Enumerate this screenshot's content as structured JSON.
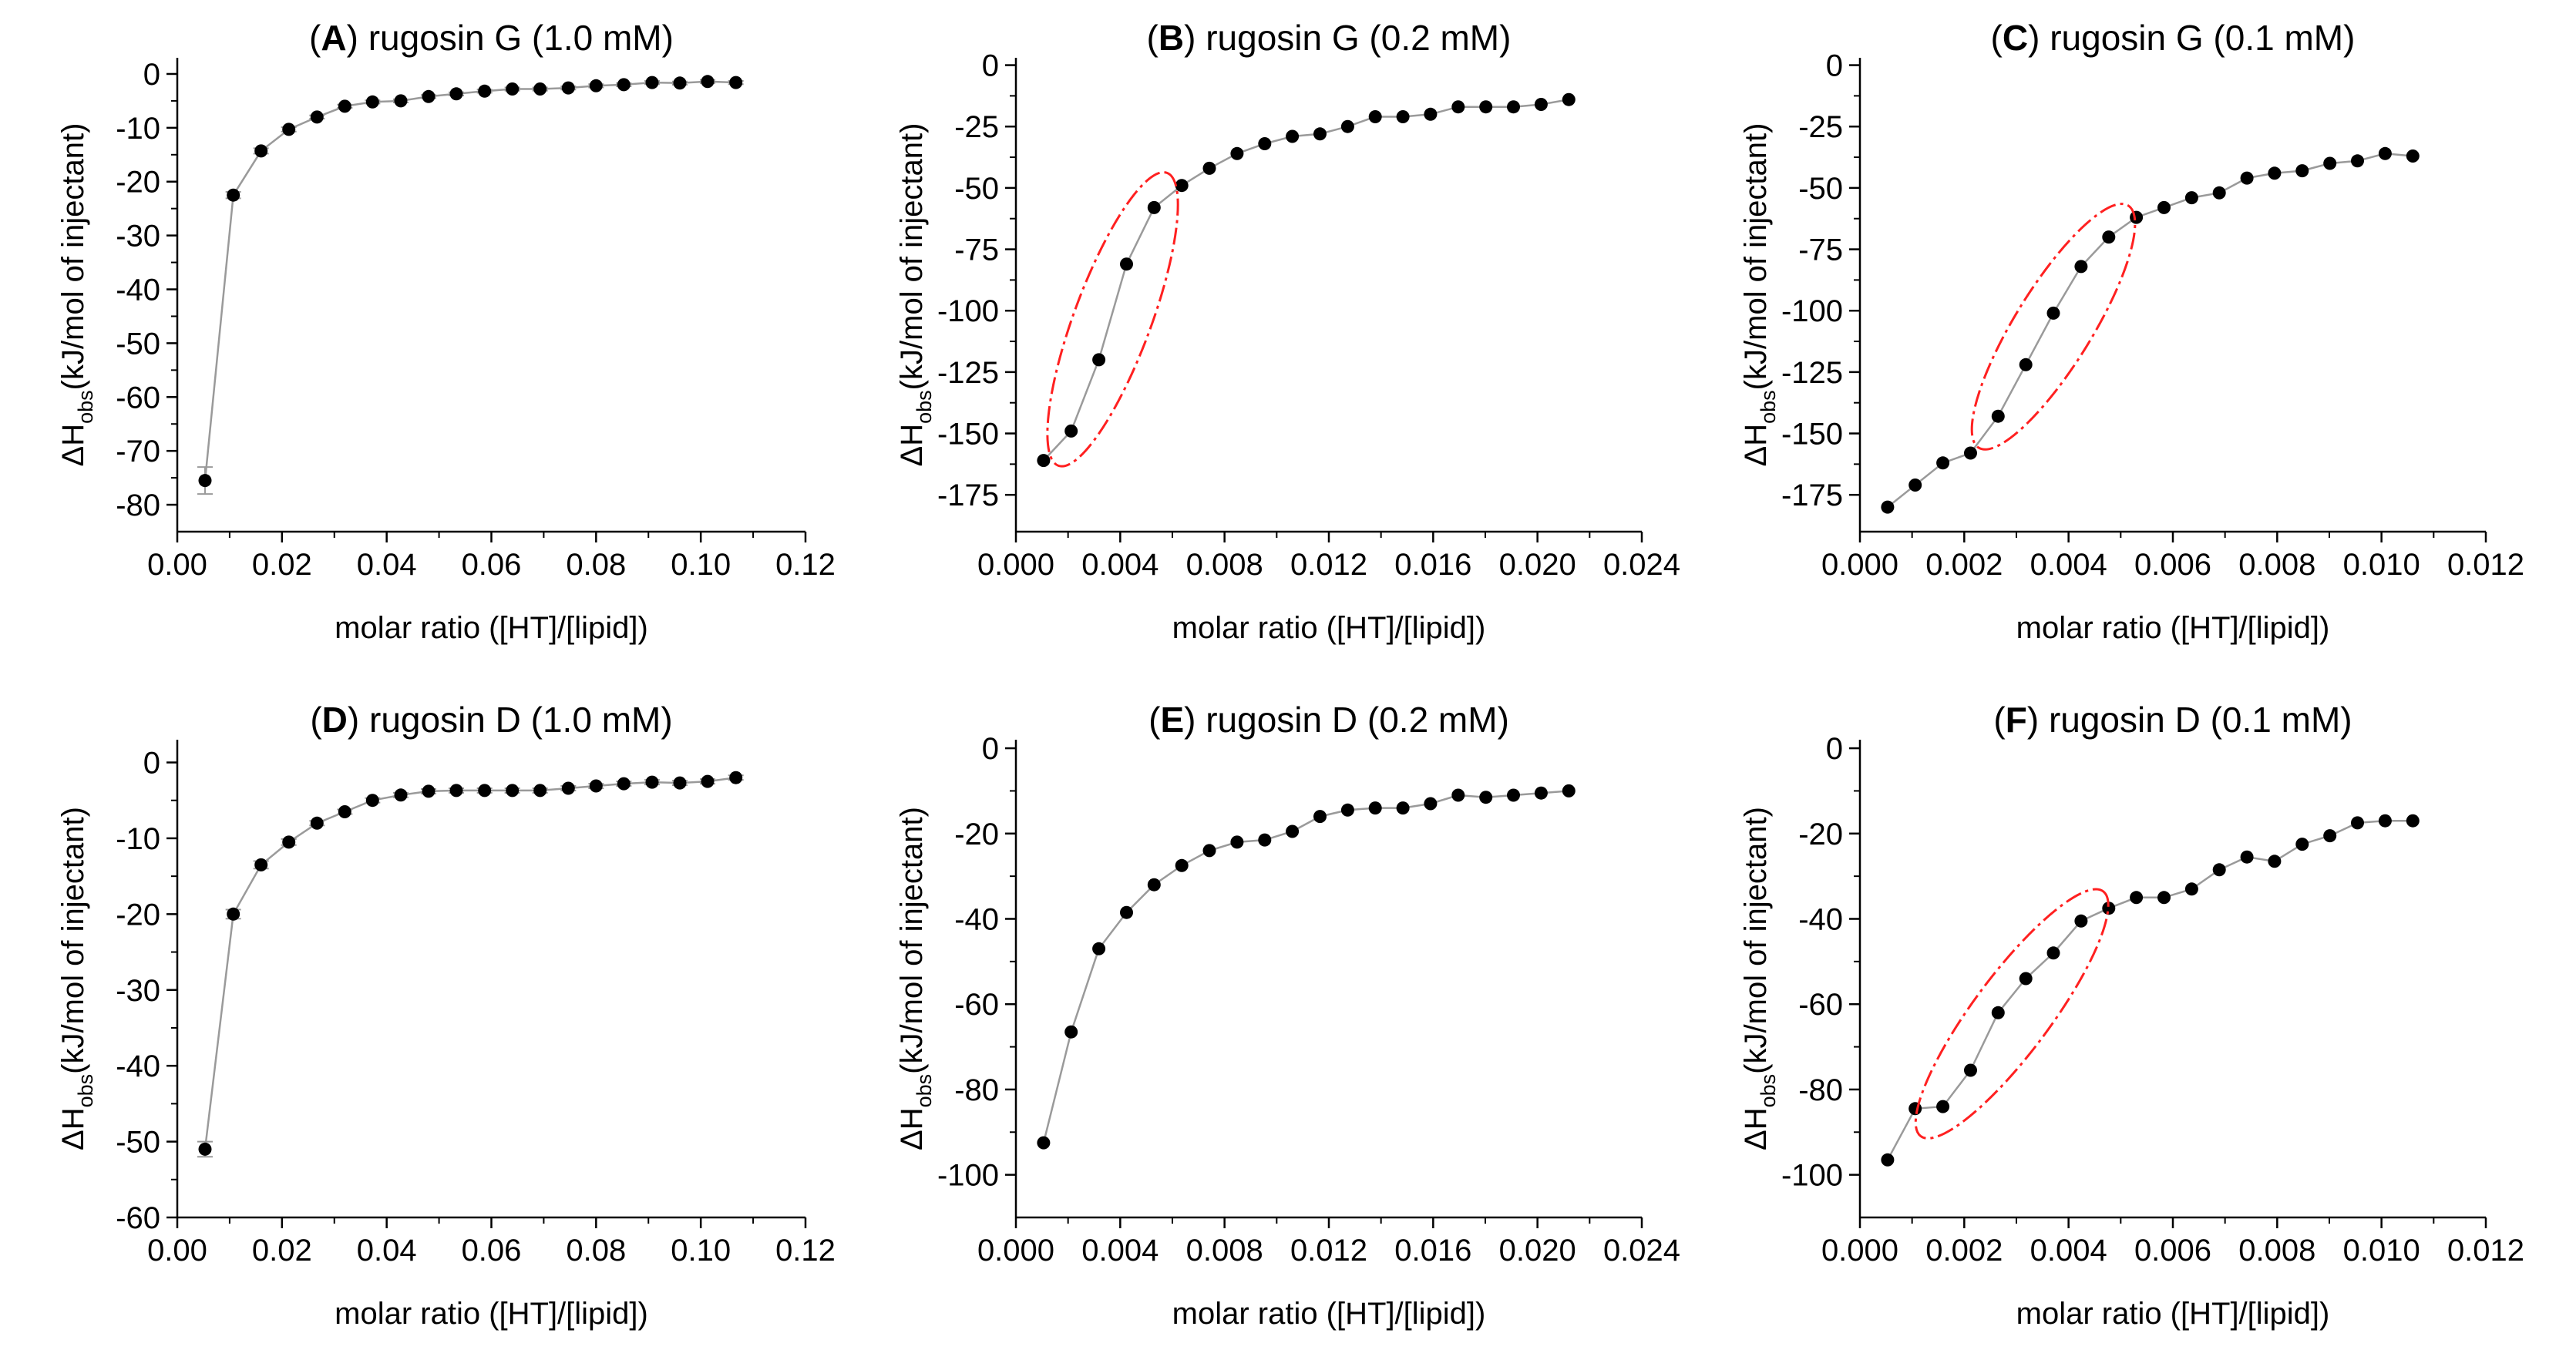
{
  "chart_data": [
    {
      "type": "scatter",
      "panel_letter": "A",
      "title": "rugosin G (1.0 mM)",
      "xlabel": "molar ratio ([HT]/[lipid])",
      "ylabel_parts": [
        "ΔH",
        "obs",
        "(kJ/mol of injectant)"
      ],
      "xlim": [
        0,
        0.12
      ],
      "xticks": [
        0,
        0.02,
        0.04,
        0.06,
        0.08,
        0.1,
        0.12
      ],
      "xtick_labels": [
        "0.00",
        "0.02",
        "0.04",
        "0.06",
        "0.08",
        "0.10",
        "0.12"
      ],
      "ylim": [
        -85,
        3
      ],
      "yticks": [
        0,
        -10,
        -20,
        -30,
        -40,
        -50,
        -60,
        -70,
        -80
      ],
      "ytick_labels": [
        "0",
        "-10",
        "-20",
        "-30",
        "-40",
        "-50",
        "-60",
        "-70",
        "-80"
      ],
      "x": [
        0.0053,
        0.0107,
        0.016,
        0.0213,
        0.0267,
        0.032,
        0.0373,
        0.0427,
        0.048,
        0.0533,
        0.0587,
        0.064,
        0.0693,
        0.0747,
        0.08,
        0.0853,
        0.0907,
        0.096,
        0.1013,
        0.1067
      ],
      "y": [
        -75.5,
        -22.5,
        -14.3,
        -10.3,
        -8,
        -6,
        -5.2,
        -5,
        -4.2,
        -3.7,
        -3.2,
        -2.8,
        -2.8,
        -2.6,
        -2.2,
        -2,
        -1.6,
        -1.7,
        -1.4,
        -1.6
      ],
      "error": [
        2.5,
        0.6,
        0.5,
        0.4,
        0.3,
        0.3,
        0.3,
        0.3,
        0.3,
        0.3,
        0.3,
        0.3,
        0.3,
        0.3,
        0.3,
        0.3,
        0.3,
        0.3,
        0.3,
        0.3
      ],
      "ellipse": null
    },
    {
      "type": "scatter",
      "panel_letter": "B",
      "title": "rugosin G (0.2 mM)",
      "xlabel": "molar ratio ([HT]/[lipid])",
      "ylabel_parts": [
        "ΔH",
        "obs",
        "(kJ/mol of injectant)"
      ],
      "xlim": [
        0,
        0.024
      ],
      "xticks": [
        0,
        0.004,
        0.008,
        0.012,
        0.016,
        0.02,
        0.024
      ],
      "xtick_labels": [
        "0.000",
        "0.004",
        "0.008",
        "0.012",
        "0.016",
        "0.020",
        "0.024"
      ],
      "ylim": [
        -190,
        3
      ],
      "yticks": [
        0,
        -25,
        -50,
        -75,
        -100,
        -125,
        -150,
        -175
      ],
      "ytick_labels": [
        "0",
        "-25",
        "-50",
        "-75",
        "-100",
        "-125",
        "-150",
        "-175"
      ],
      "x": [
        0.00106,
        0.00212,
        0.00318,
        0.00424,
        0.0053,
        0.00636,
        0.00742,
        0.00848,
        0.00954,
        0.0106,
        0.01166,
        0.01272,
        0.01378,
        0.01484,
        0.0159,
        0.01696,
        0.01802,
        0.01908,
        0.02014,
        0.0212
      ],
      "y": [
        -161,
        -149,
        -120,
        -81,
        -58,
        -49,
        -42,
        -36,
        -32,
        -29,
        -28,
        -25,
        -21,
        -21,
        -20,
        -17,
        -17,
        -17,
        -16,
        -14
      ],
      "ellipse": [
        0.00212,
        -149,
        0.0053,
        -58
      ]
    },
    {
      "type": "scatter",
      "panel_letter": "C",
      "title": "rugosin G (0.1 mM)",
      "xlabel": "molar ratio ([HT]/[lipid])",
      "ylabel_parts": [
        "ΔH",
        "obs",
        "(kJ/mol of injectant)"
      ],
      "xlim": [
        0,
        0.012
      ],
      "xticks": [
        0,
        0.002,
        0.004,
        0.006,
        0.008,
        0.01,
        0.012
      ],
      "xtick_labels": [
        "0.000",
        "0.002",
        "0.004",
        "0.006",
        "0.008",
        "0.010",
        "0.012"
      ],
      "ylim": [
        -190,
        3
      ],
      "yticks": [
        0,
        -25,
        -50,
        -75,
        -100,
        -125,
        -150,
        -175
      ],
      "ytick_labels": [
        "0",
        "-25",
        "-50",
        "-75",
        "-100",
        "-125",
        "-150",
        "-175"
      ],
      "x": [
        0.00053,
        0.00106,
        0.00159,
        0.00212,
        0.00265,
        0.00318,
        0.00371,
        0.00424,
        0.00477,
        0.0053,
        0.00583,
        0.00636,
        0.00689,
        0.00742,
        0.00795,
        0.00848,
        0.00901,
        0.00954,
        0.01007,
        0.0106
      ],
      "y": [
        -180,
        -171,
        -162,
        -158,
        -143,
        -122,
        -101,
        -82,
        -70,
        -62,
        -58,
        -54,
        -52,
        -46,
        -44,
        -43,
        -40,
        -39,
        -36,
        -37
      ],
      "ellipse": [
        0.00265,
        -143,
        0.00477,
        -70
      ]
    },
    {
      "type": "scatter",
      "panel_letter": "D",
      "title": "rugosin D (1.0 mM)",
      "xlabel": "molar ratio ([HT]/[lipid])",
      "ylabel_parts": [
        "ΔH",
        "obs",
        "(kJ/mol of injectant)"
      ],
      "xlim": [
        0,
        0.12
      ],
      "xticks": [
        0,
        0.02,
        0.04,
        0.06,
        0.08,
        0.1,
        0.12
      ],
      "xtick_labels": [
        "0.00",
        "0.02",
        "0.04",
        "0.06",
        "0.08",
        "0.10",
        "0.12"
      ],
      "ylim": [
        -60,
        3
      ],
      "yticks": [
        0,
        -10,
        -20,
        -30,
        -40,
        -50,
        -60
      ],
      "ytick_labels": [
        "0",
        "-10",
        "-20",
        "-30",
        "-40",
        "-50",
        "-60"
      ],
      "x": [
        0.0053,
        0.0107,
        0.016,
        0.0213,
        0.0267,
        0.032,
        0.0373,
        0.0427,
        0.048,
        0.0533,
        0.0587,
        0.064,
        0.0693,
        0.0747,
        0.08,
        0.0853,
        0.0907,
        0.096,
        0.1013,
        0.1067
      ],
      "y": [
        -51,
        -20,
        -13.5,
        -10.5,
        -8,
        -6.5,
        -5,
        -4.3,
        -3.8,
        -3.7,
        -3.7,
        -3.7,
        -3.7,
        -3.4,
        -3.1,
        -2.8,
        -2.6,
        -2.7,
        -2.5,
        -2
      ],
      "error": [
        1.0,
        0.6,
        0.5,
        0.4,
        0.3,
        0.3,
        0.3,
        0.3,
        0.3,
        0.3,
        0.3,
        0.3,
        0.3,
        0.3,
        0.3,
        0.3,
        0.3,
        0.3,
        0.3,
        0.3
      ],
      "ellipse": null
    },
    {
      "type": "scatter",
      "panel_letter": "E",
      "title": "rugosin D (0.2 mM)",
      "xlabel": "molar ratio ([HT]/[lipid])",
      "ylabel_parts": [
        "ΔH",
        "obs",
        "(kJ/mol of injectant)"
      ],
      "xlim": [
        0,
        0.024
      ],
      "xticks": [
        0,
        0.004,
        0.008,
        0.012,
        0.016,
        0.02,
        0.024
      ],
      "xtick_labels": [
        "0.000",
        "0.004",
        "0.008",
        "0.012",
        "0.016",
        "0.020",
        "0.024"
      ],
      "ylim": [
        -110,
        2
      ],
      "yticks": [
        0,
        -20,
        -40,
        -60,
        -80,
        -100
      ],
      "ytick_labels": [
        "0",
        "-20",
        "-40",
        "-60",
        "-80",
        "-100"
      ],
      "x": [
        0.00106,
        0.00212,
        0.00318,
        0.00424,
        0.0053,
        0.00636,
        0.00742,
        0.00848,
        0.00954,
        0.0106,
        0.01166,
        0.01272,
        0.01378,
        0.01484,
        0.0159,
        0.01696,
        0.01802,
        0.01908,
        0.02014,
        0.0212
      ],
      "y": [
        -92.5,
        -66.5,
        -47,
        -38.5,
        -32,
        -27.5,
        -24,
        -22,
        -21.5,
        -19.5,
        -16,
        -14.5,
        -14,
        -14,
        -13,
        -11,
        -11.5,
        -11,
        -10.5,
        -10
      ],
      "ellipse": null
    },
    {
      "type": "scatter",
      "panel_letter": "F",
      "title": "rugosin D (0.1 mM)",
      "xlabel": "molar ratio ([HT]/[lipid])",
      "ylabel_parts": [
        "ΔH",
        "obs",
        "(kJ/mol of injectant)"
      ],
      "xlim": [
        0,
        0.012
      ],
      "xticks": [
        0,
        0.002,
        0.004,
        0.006,
        0.008,
        0.01,
        0.012
      ],
      "xtick_labels": [
        "0.000",
        "0.002",
        "0.004",
        "0.006",
        "0.008",
        "0.010",
        "0.012"
      ],
      "ylim": [
        -110,
        2
      ],
      "yticks": [
        0,
        -20,
        -40,
        -60,
        -80,
        -100
      ],
      "ytick_labels": [
        "0",
        "-20",
        "-40",
        "-60",
        "-80",
        "-100"
      ],
      "x": [
        0.00053,
        0.00106,
        0.00159,
        0.00212,
        0.00265,
        0.00318,
        0.00371,
        0.00424,
        0.00477,
        0.0053,
        0.00583,
        0.00636,
        0.00689,
        0.00742,
        0.00795,
        0.00848,
        0.00901,
        0.00954,
        0.01007,
        0.0106
      ],
      "y": [
        -96.5,
        -84.5,
        -84,
        -75.5,
        -62,
        -54,
        -48,
        -40.5,
        -37.5,
        -35,
        -35,
        -33,
        -28.5,
        -25.5,
        -26.5,
        -22.5,
        -20.5,
        -17.5,
        -17,
        -17
      ],
      "ellipse": [
        0.00159,
        -84,
        0.00424,
        -40.5
      ]
    }
  ],
  "colors": {
    "line": "#9a9a9a",
    "marker": "#000000",
    "ellipse": "#ff2020",
    "axis": "#000000"
  }
}
